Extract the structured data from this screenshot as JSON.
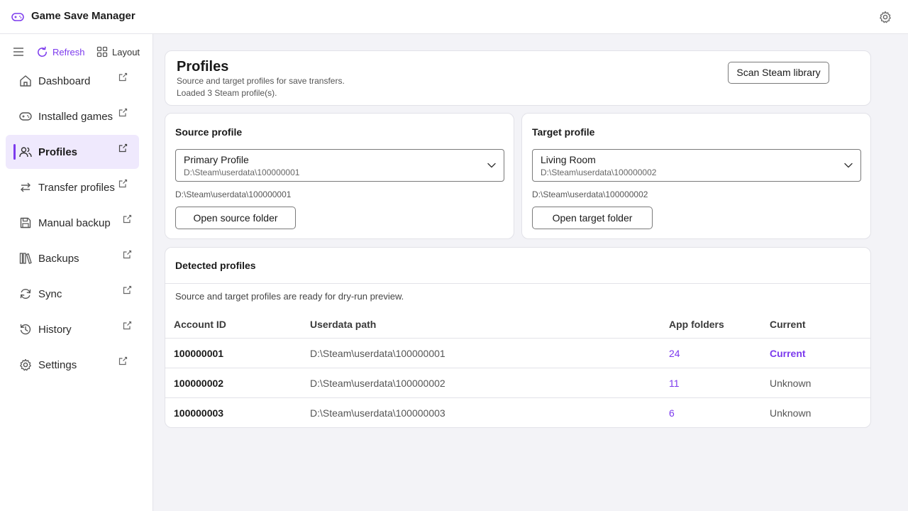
{
  "app": {
    "title": "Game Save Manager",
    "accent_color": "#7c3aed",
    "icons": {
      "app": "gamepad-icon",
      "settings": "gear-icon"
    }
  },
  "sidebar": {
    "toolbar": {
      "menu_icon": "hamburger-menu-icon",
      "refresh_label": "Refresh",
      "refresh_icon": "refresh-icon",
      "layout_label": "Layout",
      "layout_icon": "layout-grid-icon"
    },
    "items": [
      {
        "label": "Dashboard",
        "icon": "home-icon",
        "active": false
      },
      {
        "label": "Installed games",
        "icon": "gamepad-icon",
        "active": false
      },
      {
        "label": "Profiles",
        "icon": "users-icon",
        "active": true
      },
      {
        "label": "Transfer profiles",
        "icon": "transfer-arrows-icon",
        "active": false
      },
      {
        "label": "Manual backup",
        "icon": "save-disk-icon",
        "active": false
      },
      {
        "label": "Backups",
        "icon": "library-icon",
        "active": false
      },
      {
        "label": "Sync",
        "icon": "sync-icon",
        "active": false
      },
      {
        "label": "History",
        "icon": "history-icon",
        "active": false
      },
      {
        "label": "Settings",
        "icon": "gear-icon",
        "active": false
      }
    ]
  },
  "header": {
    "title": "Profiles",
    "subtitle": "Source and target profiles for save transfers.",
    "status": "Loaded 3 Steam profile(s).",
    "scan_button": "Scan Steam library"
  },
  "source": {
    "title": "Source profile",
    "selected_name": "Primary Profile",
    "selected_path": "D:\\Steam\\userdata\\100000001",
    "path": "D:\\Steam\\userdata\\100000001",
    "open_button": "Open source folder"
  },
  "target": {
    "title": "Target profile",
    "selected_name": "Living Room",
    "selected_path": "D:\\Steam\\userdata\\100000002",
    "path": "D:\\Steam\\userdata\\100000002",
    "open_button": "Open target folder"
  },
  "detected": {
    "title": "Detected profiles",
    "message": "Source and target profiles are ready for dry-run preview.",
    "columns": [
      "Account ID",
      "Userdata path",
      "App folders",
      "Current"
    ],
    "rows": [
      {
        "account_id": "100000001",
        "path": "D:\\Steam\\userdata\\100000001",
        "app_folders": "24",
        "current": "Current"
      },
      {
        "account_id": "100000002",
        "path": "D:\\Steam\\userdata\\100000002",
        "app_folders": "11",
        "current": "Unknown"
      },
      {
        "account_id": "100000003",
        "path": "D:\\Steam\\userdata\\100000003",
        "app_folders": "6",
        "current": "Unknown"
      }
    ]
  }
}
